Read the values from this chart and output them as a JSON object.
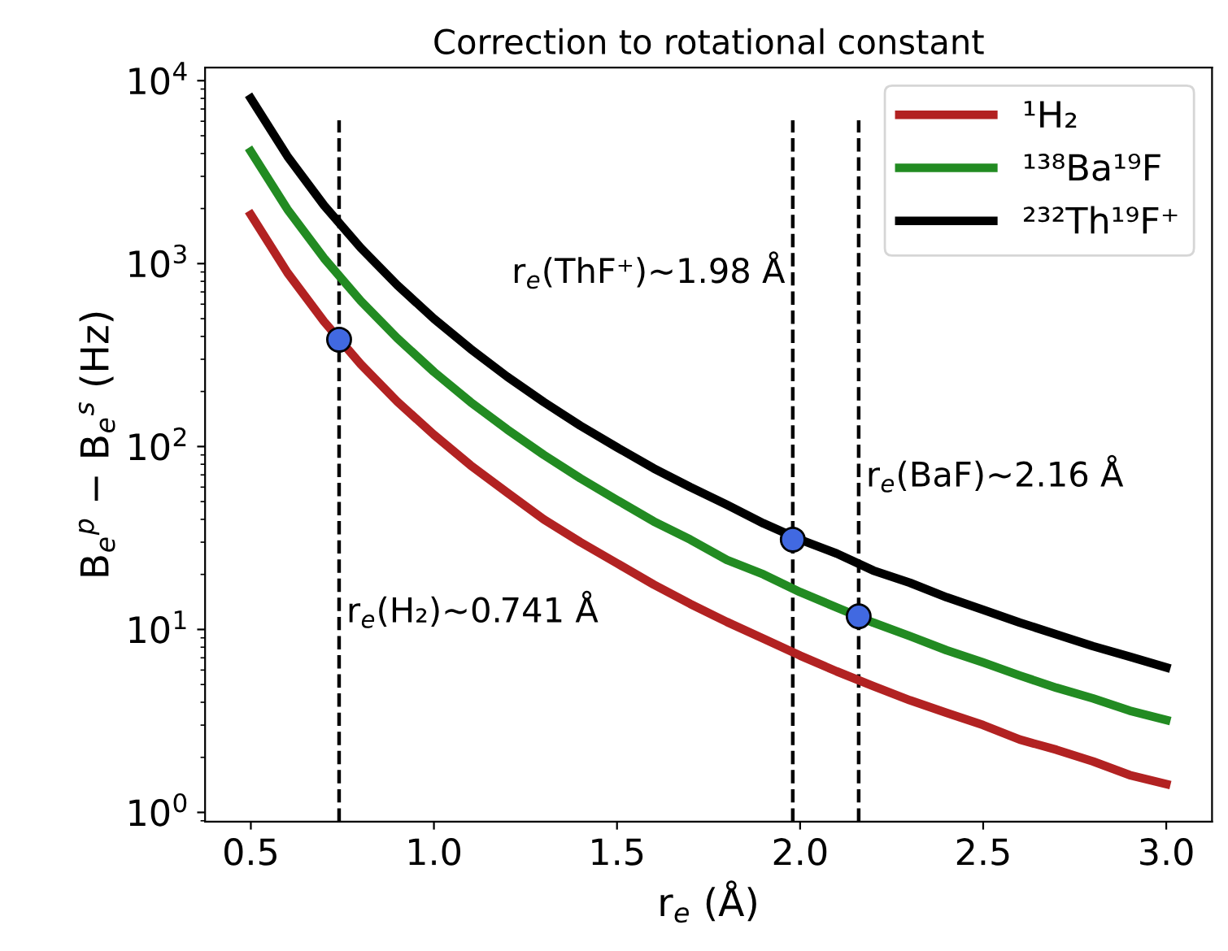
{
  "chart_data": {
    "type": "line",
    "title": "Correction to rotational constant",
    "xlabel": "r$_{e}$ (Å)",
    "ylabel": "B$_{e}$$^{p}$ − B$_{e}$$^{s}$ (Hz)",
    "x": [
      0.5,
      0.6,
      0.7,
      0.8,
      0.9,
      1.0,
      1.1,
      1.2,
      1.3,
      1.4,
      1.5,
      1.6,
      1.7,
      1.8,
      1.9,
      2.0,
      2.1,
      2.2,
      2.3,
      2.4,
      2.5,
      2.6,
      2.7,
      2.8,
      2.9,
      3.0
    ],
    "series": [
      {
        "name": "¹H₂",
        "color": "#b22222",
        "values": [
          1850,
          892,
          482,
          282,
          176,
          116,
          79,
          56,
          40,
          30,
          23,
          17.6,
          13.8,
          11.0,
          8.9,
          7.2,
          5.9,
          4.9,
          4.1,
          3.5,
          3.0,
          2.5,
          2.2,
          1.9,
          1.6,
          1.43
        ]
      },
      {
        "name": "¹³⁸Ba¹⁹F",
        "color": "#228b22",
        "values": [
          4100,
          1980,
          1070,
          626,
          391,
          256,
          175,
          124,
          90,
          67,
          51,
          39,
          31,
          24,
          20,
          16,
          13.2,
          10.9,
          9.2,
          7.7,
          6.6,
          5.6,
          4.8,
          4.2,
          3.6,
          3.2
        ]
      },
      {
        "name": "²³²Th¹⁹F⁺",
        "color": "#000000",
        "values": [
          8000,
          3860,
          2080,
          1220,
          762,
          500,
          342,
          241,
          175,
          130,
          99,
          76,
          60,
          48,
          38,
          31,
          26,
          21,
          18,
          15,
          12.8,
          10.9,
          9.4,
          8.1,
          7.1,
          6.2
        ]
      },
      {
        "type": "scatter",
        "color": "#4169e1",
        "marker": "circle",
        "x": [
          0.741,
          1.98,
          2.16
        ],
        "values": [
          384,
          31,
          11.8
        ]
      }
    ],
    "ref_lines": [
      {
        "axis": "x",
        "value": 0.741,
        "label": "r$_{e}$(H₂)~0.741 Å",
        "color": "#000000",
        "line_style": "dashed"
      },
      {
        "axis": "x",
        "value": 1.98,
        "label": "r$_{e}$(ThF⁺)~1.98 Å",
        "color": "#000000",
        "line_style": "dashed"
      },
      {
        "axis": "x",
        "value": 2.16,
        "label": "r$_{e}$(BaF)~2.16 Å",
        "color": "#000000",
        "line_style": "dashed"
      }
    ],
    "log": "y",
    "xlim": [
      0.375,
      3.125
    ],
    "ylim": [
      0.89,
      11800
    ],
    "xticks": [
      {
        "value": 0.5,
        "label": "0.5"
      },
      {
        "value": 1.0,
        "label": "1.0"
      },
      {
        "value": 1.5,
        "label": "1.5"
      },
      {
        "value": 2.0,
        "label": "2.0"
      },
      {
        "value": 2.5,
        "label": "2.5"
      },
      {
        "value": 3.0,
        "label": "3.0"
      }
    ],
    "yticks": [
      {
        "value": 1,
        "label": "10$^{0}$"
      },
      {
        "value": 10,
        "label": "10$^{1}$"
      },
      {
        "value": 100,
        "label": "10$^{2}$"
      },
      {
        "value": 1000,
        "label": "10$^{3}$"
      },
      {
        "value": 10000,
        "label": "10$^{4}$"
      }
    ],
    "grid": false,
    "legend": "top right",
    "line_style": "solid"
  }
}
